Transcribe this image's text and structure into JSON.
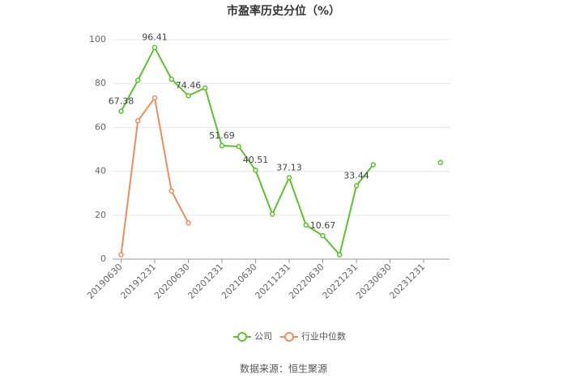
{
  "chart_data": {
    "type": "line",
    "title": "市盈率历史分位（%）",
    "source": "数据来源：恒生聚源",
    "categories": [
      "20190630",
      null,
      "20191231",
      null,
      "20200630",
      null,
      "20201231",
      null,
      "20210630",
      null,
      "20211231",
      null,
      "20220630",
      null,
      "20221231",
      null,
      "20230630",
      null,
      "20231231",
      null
    ],
    "series": [
      {
        "name": "公司",
        "color": "#5cc22e",
        "values": [
          67.38,
          81.5,
          96.41,
          82,
          74.46,
          78,
          51.69,
          51.3,
          40.51,
          20.5,
          37.13,
          15.5,
          10.67,
          2,
          33.44,
          43,
          null,
          null,
          null,
          44
        ],
        "value_labels": [
          "67.38",
          null,
          "96.41",
          null,
          "74.46",
          null,
          "51.69",
          null,
          "40.51",
          null,
          "37.13",
          null,
          "10.67",
          null,
          "33.44",
          null,
          null,
          null,
          null,
          null
        ]
      },
      {
        "name": "行业中位数",
        "color": "#f08c5a",
        "values": [
          2,
          63,
          73.5,
          31,
          16.5,
          null,
          null,
          null,
          null,
          null,
          null,
          null,
          null,
          null,
          null,
          null,
          null,
          null,
          null,
          null
        ]
      }
    ],
    "ylim": [
      0,
      100
    ],
    "yticks": [
      0,
      20,
      40,
      60,
      80,
      100
    ],
    "grid": true,
    "legend": "bottom"
  }
}
